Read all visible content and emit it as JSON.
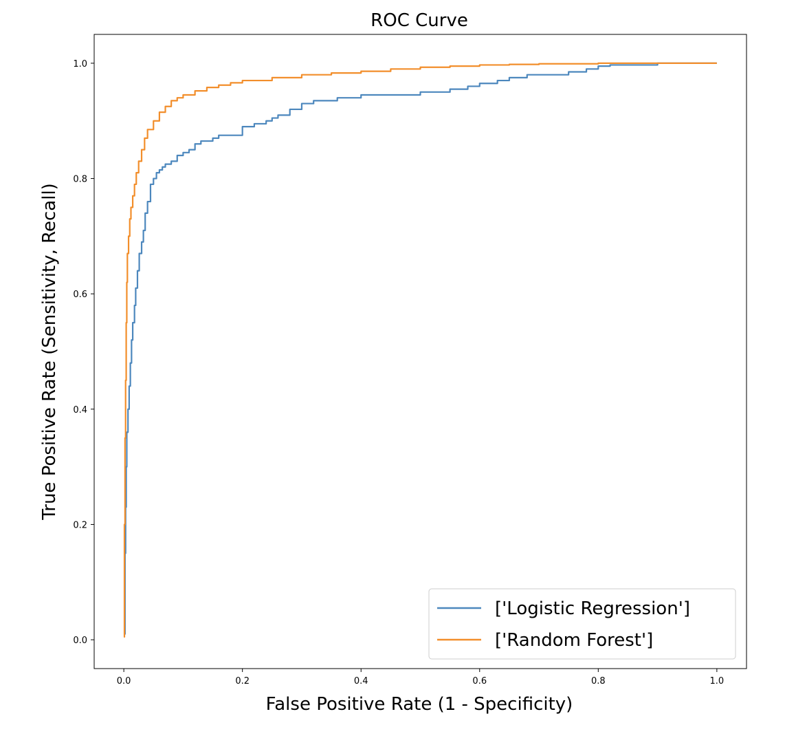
{
  "chart_data": {
    "type": "line",
    "title": "ROC Curve",
    "xlabel": "False Positive Rate (1 - Specificity)",
    "ylabel": "True Positive Rate (Sensitivity, Recall)",
    "xlim": [
      -0.05,
      1.05
    ],
    "ylim": [
      -0.05,
      1.05
    ],
    "xticks": [
      "0.0",
      "0.2",
      "0.4",
      "0.6",
      "0.8",
      "1.0"
    ],
    "yticks": [
      "0.0",
      "0.2",
      "0.4",
      "0.6",
      "0.8",
      "1.0"
    ],
    "grid": false,
    "legend_position": "lower-right",
    "series": [
      {
        "name": "['Logistic Regression']",
        "color": "#4c87bd",
        "x": [
          0.0,
          0.002,
          0.003,
          0.004,
          0.005,
          0.007,
          0.009,
          0.011,
          0.013,
          0.015,
          0.018,
          0.02,
          0.023,
          0.026,
          0.03,
          0.033,
          0.036,
          0.04,
          0.045,
          0.05,
          0.055,
          0.06,
          0.065,
          0.07,
          0.08,
          0.09,
          0.1,
          0.11,
          0.12,
          0.13,
          0.14,
          0.15,
          0.16,
          0.18,
          0.2,
          0.22,
          0.24,
          0.25,
          0.26,
          0.28,
          0.3,
          0.32,
          0.34,
          0.36,
          0.38,
          0.4,
          0.45,
          0.5,
          0.55,
          0.58,
          0.6,
          0.63,
          0.65,
          0.68,
          0.7,
          0.75,
          0.78,
          0.8,
          0.82,
          0.85,
          0.9,
          0.92,
          0.95,
          1.0
        ],
        "y": [
          0.01,
          0.15,
          0.23,
          0.3,
          0.36,
          0.4,
          0.44,
          0.48,
          0.52,
          0.55,
          0.58,
          0.61,
          0.64,
          0.67,
          0.69,
          0.71,
          0.74,
          0.76,
          0.79,
          0.8,
          0.81,
          0.815,
          0.82,
          0.825,
          0.83,
          0.84,
          0.845,
          0.85,
          0.86,
          0.865,
          0.865,
          0.87,
          0.875,
          0.875,
          0.89,
          0.895,
          0.9,
          0.905,
          0.91,
          0.92,
          0.93,
          0.935,
          0.935,
          0.94,
          0.94,
          0.945,
          0.945,
          0.95,
          0.955,
          0.96,
          0.965,
          0.97,
          0.975,
          0.98,
          0.98,
          0.985,
          0.99,
          0.995,
          0.997,
          0.997,
          1.0,
          1.0,
          1.0,
          1.0
        ]
      },
      {
        "name": "['Random Forest']",
        "color": "#f28e2b",
        "x": [
          0.0,
          0.001,
          0.002,
          0.003,
          0.004,
          0.005,
          0.006,
          0.008,
          0.01,
          0.012,
          0.015,
          0.018,
          0.021,
          0.025,
          0.03,
          0.035,
          0.04,
          0.05,
          0.06,
          0.07,
          0.08,
          0.09,
          0.1,
          0.12,
          0.14,
          0.16,
          0.18,
          0.2,
          0.25,
          0.3,
          0.35,
          0.4,
          0.45,
          0.5,
          0.55,
          0.6,
          0.65,
          0.7,
          0.8,
          0.9,
          1.0
        ],
        "y": [
          0.005,
          0.2,
          0.35,
          0.45,
          0.55,
          0.62,
          0.67,
          0.7,
          0.73,
          0.75,
          0.77,
          0.79,
          0.81,
          0.83,
          0.85,
          0.87,
          0.885,
          0.9,
          0.915,
          0.925,
          0.935,
          0.94,
          0.945,
          0.952,
          0.958,
          0.962,
          0.966,
          0.97,
          0.975,
          0.98,
          0.983,
          0.986,
          0.99,
          0.993,
          0.995,
          0.997,
          0.998,
          0.999,
          1.0,
          1.0,
          1.0
        ]
      }
    ]
  }
}
